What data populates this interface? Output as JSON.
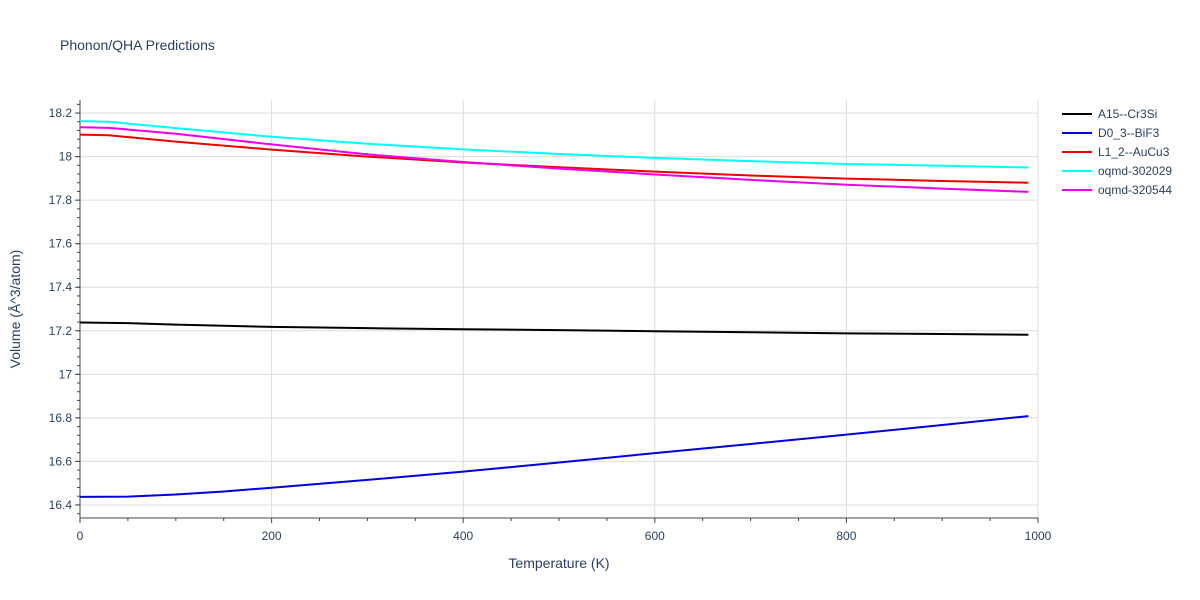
{
  "chart_data": {
    "type": "line",
    "title": "Phonon/QHA Predictions",
    "xlabel": "Temperature (K)",
    "ylabel": "Volume (Å^3/atom)",
    "xlim": [
      0,
      1000
    ],
    "ylim": [
      16.34,
      18.26
    ],
    "xticks": [
      0,
      200,
      400,
      600,
      800,
      1000
    ],
    "xtick_labels": [
      "0",
      "200",
      "400",
      "600",
      "800",
      "1000"
    ],
    "yticks": [
      16.4,
      16.6,
      16.8,
      17.0,
      17.2,
      17.4,
      17.6,
      17.8,
      18.0,
      18.2
    ],
    "ytick_labels": [
      "16.4",
      "16.6",
      "16.8",
      "17",
      "17.2",
      "17.4",
      "17.6",
      "17.8",
      "18",
      "18.2"
    ],
    "grid": true,
    "legend_position": "top-right",
    "series": [
      {
        "name": "A15--Cr3Si",
        "color": "#000000",
        "x": [
          0,
          50,
          100,
          200,
          300,
          400,
          500,
          600,
          700,
          800,
          900,
          990
        ],
        "y": [
          17.238,
          17.235,
          17.228,
          17.218,
          17.212,
          17.207,
          17.203,
          17.198,
          17.193,
          17.188,
          17.185,
          17.182
        ]
      },
      {
        "name": "D0_3--BiF3",
        "color": "#0000dd",
        "x": [
          0,
          50,
          100,
          150,
          200,
          300,
          400,
          500,
          600,
          700,
          800,
          900,
          990
        ],
        "y": [
          16.437,
          16.438,
          16.448,
          16.462,
          16.479,
          16.515,
          16.553,
          16.595,
          16.638,
          16.68,
          16.723,
          16.767,
          16.808
        ]
      },
      {
        "name": "L1_2--AuCu3",
        "color": "#ee0000",
        "x": [
          0,
          30,
          100,
          200,
          300,
          400,
          500,
          600,
          700,
          800,
          900,
          990
        ],
        "y": [
          18.101,
          18.098,
          18.069,
          18.032,
          18.0,
          17.973,
          17.951,
          17.931,
          17.913,
          17.899,
          17.888,
          17.88
        ]
      },
      {
        "name": "oqmd-302029",
        "color": "#00ffff",
        "x": [
          0,
          30,
          100,
          200,
          300,
          400,
          500,
          600,
          700,
          800,
          900,
          990
        ],
        "y": [
          18.163,
          18.16,
          18.131,
          18.091,
          18.059,
          18.033,
          18.012,
          17.994,
          17.979,
          17.966,
          17.958,
          17.95
        ]
      },
      {
        "name": "oqmd-320544",
        "color": "#ee00ee",
        "x": [
          0,
          30,
          100,
          200,
          300,
          400,
          500,
          600,
          700,
          800,
          900,
          990
        ],
        "y": [
          18.135,
          18.132,
          18.105,
          18.056,
          18.01,
          17.975,
          17.945,
          17.918,
          17.893,
          17.871,
          17.853,
          17.838
        ]
      }
    ]
  }
}
